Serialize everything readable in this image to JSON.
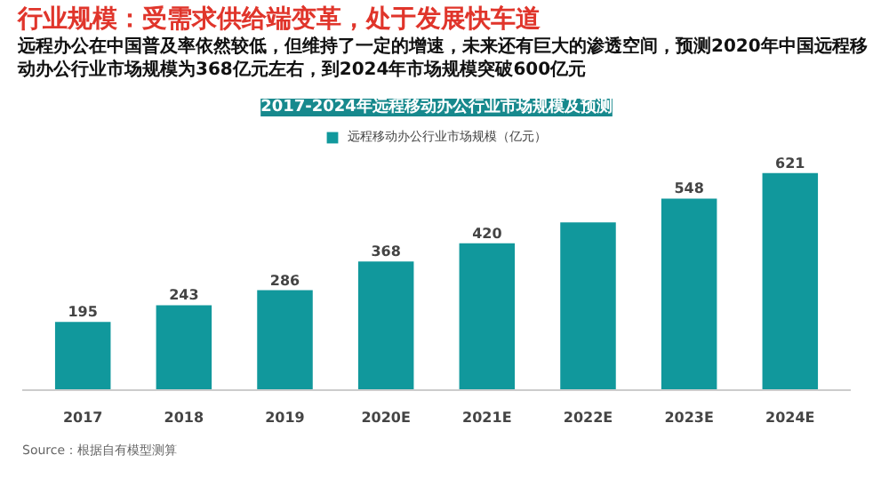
{
  "chart_data": {
    "type": "bar",
    "title": "行业规模：受需求供给端变革，处于发展快车道",
    "subtitle": "远程办公在中国普及率依然较低，但维持了一定的增速，未来还有巨大的渗透空间，预测2020年中国远程移动办公行业市场规模为368亿元左右，到2024年市场规模突破600亿元",
    "xlabel": "2017-2024年远程移动办公行业市场规模及预测",
    "categories": [
      "2017",
      "2018",
      "2019",
      "2020E",
      "2021E",
      "2022E",
      "2023E",
      "2024E"
    ],
    "series": [
      {
        "name": "远程移动办公行业市场规模（亿元）",
        "color": "#11989c",
        "values": [
          195,
          243,
          286,
          368,
          420,
          480,
          548,
          621
        ],
        "value_labels": [
          "195",
          "243",
          "286",
          "368",
          "420",
          null,
          "548",
          "621"
        ]
      }
    ],
    "tick_labels": "x",
    "legend": "top",
    "annotations": [
      "Source：根据自有模型测算"
    ]
  }
}
